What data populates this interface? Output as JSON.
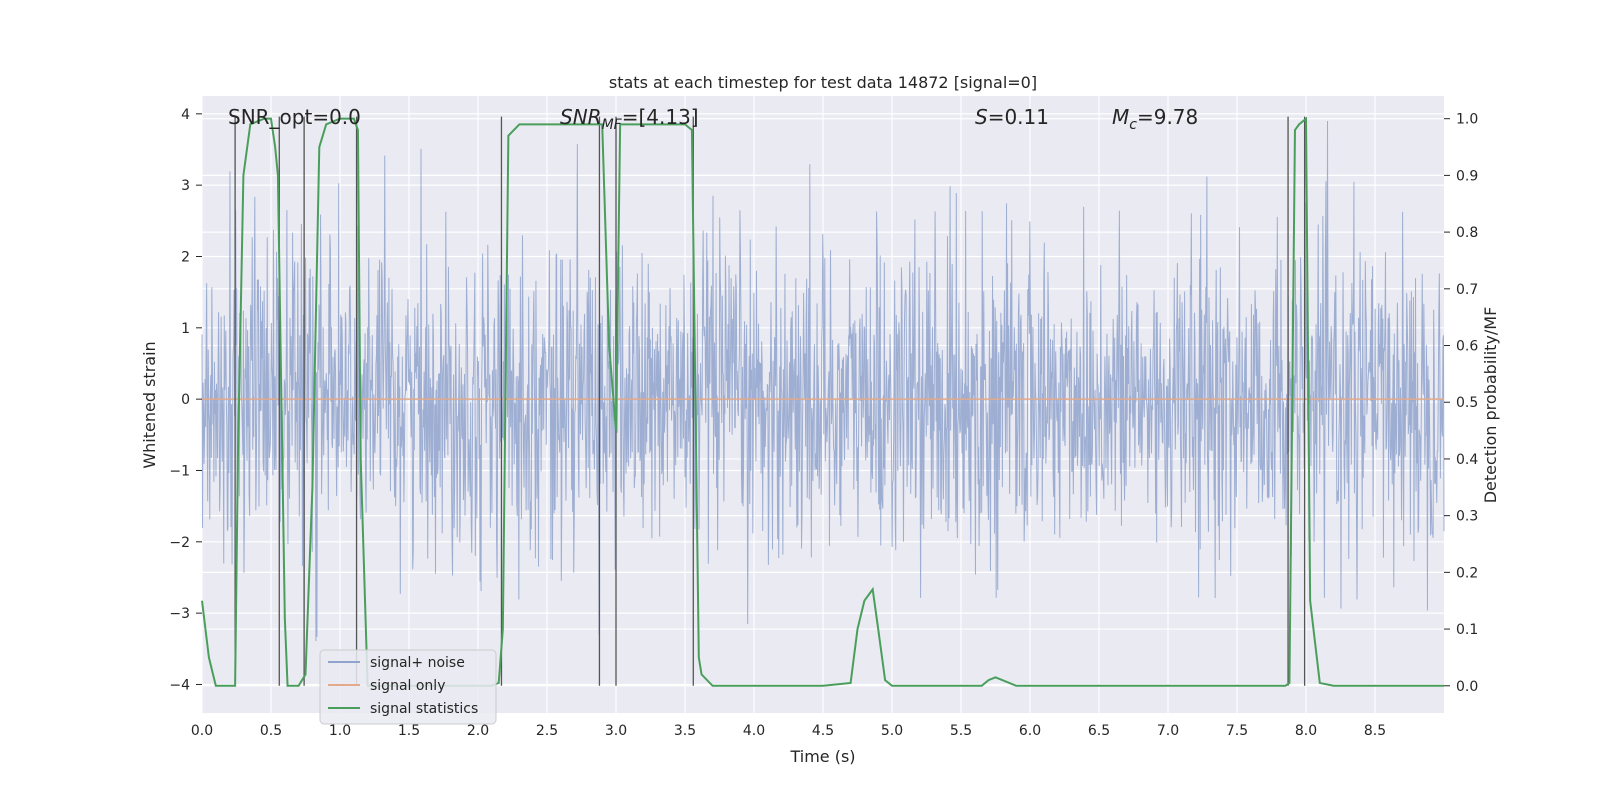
{
  "chart_data": {
    "type": "line",
    "title": "stats at each timestep for test data 14872 [signal=0]",
    "xlabel": "Time (s)",
    "ylabel": "Whitened strain",
    "ylabel_right": "Detection probability/MF",
    "xlim": [
      0.0,
      9.0
    ],
    "ylim": [
      -4.4,
      4.25
    ],
    "ylim_right": [
      -0.048,
      1.04
    ],
    "x_ticks": [
      "0.0",
      "0.5",
      "1.0",
      "1.5",
      "2.0",
      "2.5",
      "3.0",
      "3.5",
      "4.0",
      "4.5",
      "5.0",
      "5.5",
      "6.0",
      "6.5",
      "7.0",
      "7.5",
      "8.0",
      "8.5"
    ],
    "y_ticks": [
      "−4",
      "−3",
      "−2",
      "−1",
      "0",
      "1",
      "2",
      "3",
      "4"
    ],
    "y_ticks_right": [
      "0.0",
      "0.1",
      "0.2",
      "0.3",
      "0.4",
      "0.5",
      "0.6",
      "0.7",
      "0.8",
      "0.9",
      "1.0"
    ],
    "grid": true,
    "legend_position": "lower-left",
    "annotations": {
      "snr_opt": "SNR_opt=0.0",
      "snr_mf_main": "SNR",
      "snr_mf_sub": "MF",
      "snr_mf_value": "=[4.13]",
      "s_main": "S",
      "s_value": "=0.11",
      "mc_main": "M",
      "mc_sub": "c",
      "mc_value": "=9.78"
    },
    "series": [
      {
        "name": "signal+ noise",
        "color": "#8fa3cc",
        "axis": "left",
        "description_values": "whitened noise, envelope approx ±2.5",
        "envelope": 2.5
      },
      {
        "name": "signal only",
        "color": "#e3a98a",
        "axis": "left",
        "values_constant": 0.0
      },
      {
        "name": "signal statistics",
        "color": "#4a9e5c",
        "axis": "right",
        "x": [
          0.0,
          0.05,
          0.1,
          0.2,
          0.24,
          0.26,
          0.3,
          0.35,
          0.45,
          0.5,
          0.53,
          0.55,
          0.6,
          0.62,
          0.7,
          0.75,
          0.8,
          0.85,
          0.9,
          1.0,
          1.1,
          1.13,
          1.15,
          1.2,
          1.3,
          2.1,
          2.15,
          2.18,
          2.22,
          2.3,
          2.5,
          2.8,
          2.9,
          2.95,
          3.0,
          3.03,
          3.1,
          3.3,
          3.5,
          3.55,
          3.6,
          3.62,
          3.7,
          4.0,
          4.5,
          4.7,
          4.75,
          4.8,
          4.86,
          4.9,
          4.95,
          5.0,
          5.5,
          5.65,
          5.7,
          5.75,
          5.85,
          5.9,
          6.0,
          7.5,
          7.85,
          7.88,
          7.92,
          7.95,
          8.0,
          8.03,
          8.1,
          8.2,
          8.5,
          9.0
        ],
        "values": [
          0.15,
          0.05,
          0.0,
          0.0,
          0.0,
          0.4,
          0.9,
          0.99,
          1.0,
          1.0,
          0.95,
          0.9,
          0.12,
          0.0,
          0.0,
          0.02,
          0.35,
          0.95,
          0.99,
          1.0,
          1.0,
          0.98,
          0.4,
          0.0,
          0.0,
          0.0,
          0.005,
          0.1,
          0.97,
          0.99,
          0.99,
          0.99,
          0.99,
          0.6,
          0.45,
          0.99,
          0.99,
          0.99,
          0.99,
          0.98,
          0.05,
          0.02,
          0.0,
          0.0,
          0.0,
          0.005,
          0.1,
          0.15,
          0.17,
          0.1,
          0.01,
          0.0,
          0.0,
          0.0,
          0.01,
          0.015,
          0.005,
          0.0,
          0.0,
          0.0,
          0.0,
          0.005,
          0.98,
          0.99,
          1.0,
          0.15,
          0.005,
          0.0,
          0.0,
          0.0
        ]
      }
    ],
    "vertical_markers_x": [
      0.24,
      0.56,
      0.74,
      1.12,
      2.17,
      2.88,
      3.0,
      3.56,
      7.87,
      7.99
    ]
  }
}
